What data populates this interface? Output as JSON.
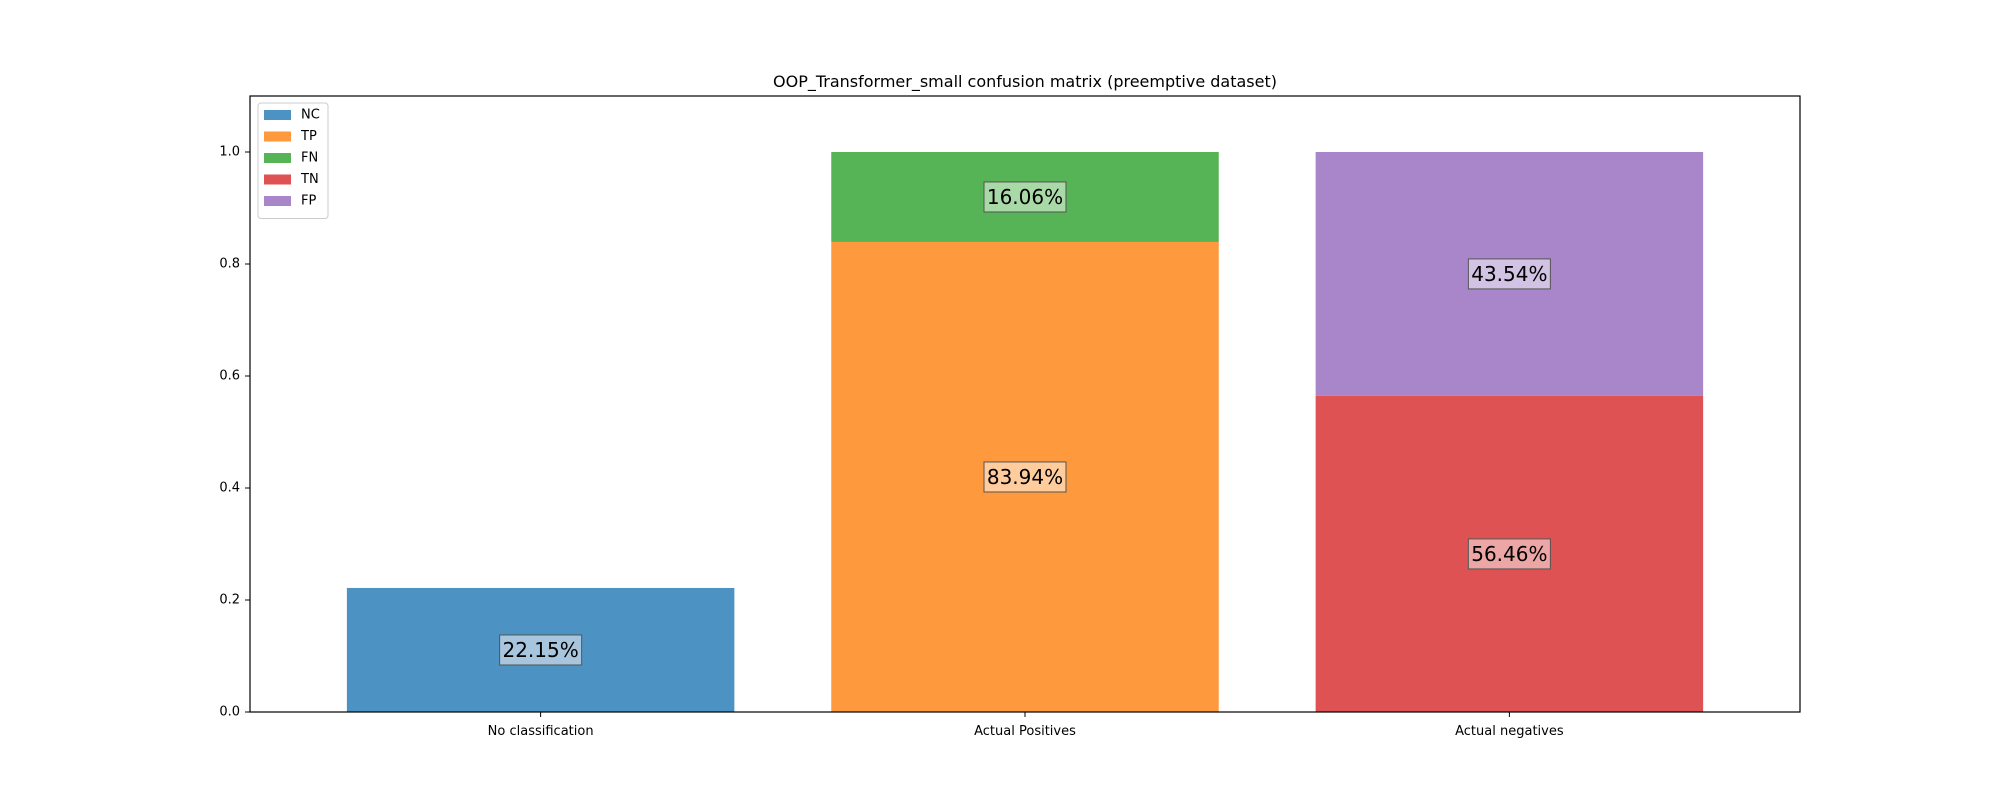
{
  "chart_data": {
    "type": "bar",
    "title": "OOP_Transformer_small confusion matrix (preemptive dataset)",
    "xlabel": "",
    "ylabel": "",
    "categories": [
      "No classification",
      "Actual Positives",
      "Actual negatives"
    ],
    "ylim": [
      0,
      1.1
    ],
    "yticks": [
      "0.0",
      "0.2",
      "0.4",
      "0.6",
      "0.8",
      "1.0"
    ],
    "stacked": true,
    "grid": false,
    "legend_position": "upper-left",
    "series": [
      {
        "name": "NC",
        "color": "#1f77b4",
        "label_color": "#a8c5de",
        "values": [
          0.2215,
          0,
          0
        ],
        "labels": [
          "22.15%",
          "",
          ""
        ]
      },
      {
        "name": "TP",
        "color": "#ff7f0e",
        "label_color": "#ffcc9e",
        "values": [
          0,
          0.8394,
          0
        ],
        "labels": [
          "",
          "83.94%",
          ""
        ]
      },
      {
        "name": "FN",
        "color": "#2ca02c",
        "label_color": "#aad9a8",
        "values": [
          0,
          0.1606,
          0
        ],
        "labels": [
          "",
          "16.06%",
          ""
        ]
      },
      {
        "name": "TN",
        "color": "#d62728",
        "label_color": "#eda6a6",
        "values": [
          0,
          0,
          0.5646
        ],
        "labels": [
          "",
          "",
          "56.46%"
        ]
      },
      {
        "name": "FP",
        "color": "#9467bd",
        "label_color": "#d2c2e3",
        "values": [
          0,
          0,
          0.4354
        ],
        "labels": [
          "",
          "",
          "43.54%"
        ]
      }
    ]
  }
}
